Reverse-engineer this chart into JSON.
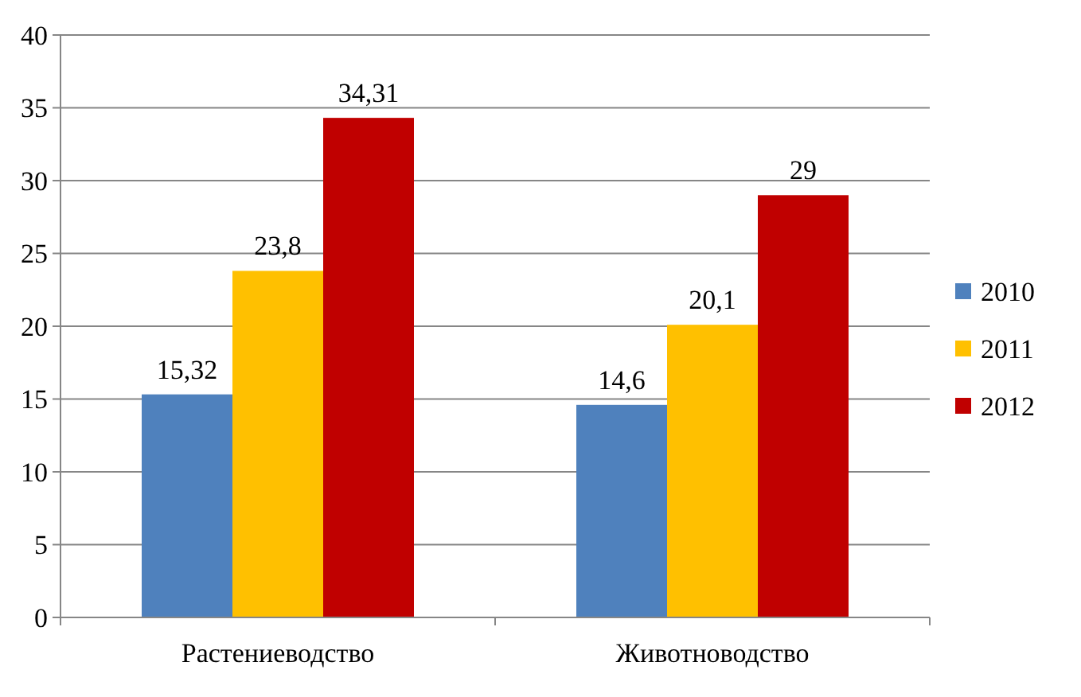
{
  "chart_data": {
    "type": "bar",
    "categories": [
      "Растениеводство",
      "Животноводство"
    ],
    "series": [
      {
        "name": "2010",
        "color": "#4f81bd",
        "values": [
          15.32,
          14.6
        ],
        "value_labels": [
          "15,32",
          "14,6"
        ]
      },
      {
        "name": "2011",
        "color": "#ffc000",
        "values": [
          23.8,
          20.1
        ],
        "value_labels": [
          "23,8",
          "20,1"
        ]
      },
      {
        "name": "2012",
        "color": "#c00000",
        "values": [
          34.31,
          29
        ],
        "value_labels": [
          "34,31",
          "29"
        ]
      }
    ],
    "ylim": [
      0,
      40
    ],
    "yticks": [
      0,
      5,
      10,
      15,
      20,
      25,
      30,
      35,
      40
    ],
    "grid": "y",
    "legend": "right"
  }
}
